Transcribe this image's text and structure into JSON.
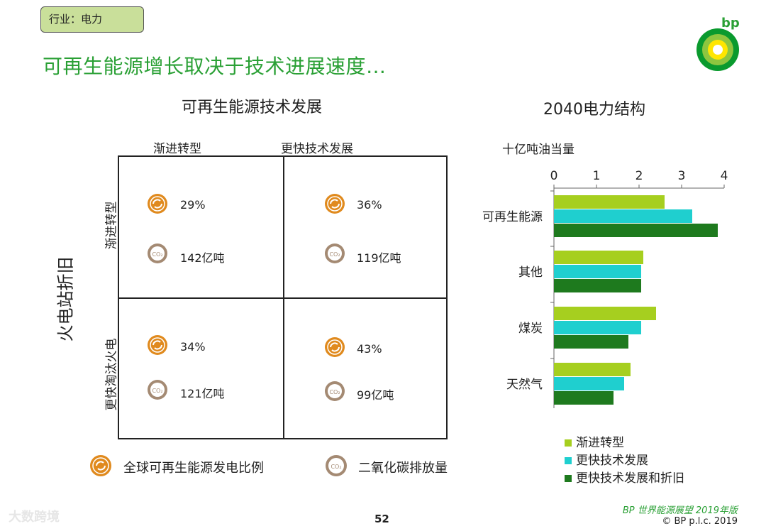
{
  "tag": "行业：电力",
  "title": "可再生能源增长取决于技术进展速度…",
  "logo_text": "bp",
  "matrix": {
    "title": "可再生能源技术发展",
    "col_labels": [
      "渐进转型",
      "更快技术发展"
    ],
    "row_labels": [
      "渐进转型",
      "更快淘汰火电"
    ],
    "y_axis_title": "火电站折旧",
    "cells": [
      {
        "share": "29%",
        "co2": "142亿吨"
      },
      {
        "share": "36%",
        "co2": "119亿吨"
      },
      {
        "share": "34%",
        "co2": "121亿吨"
      },
      {
        "share": "43%",
        "co2": "99亿吨"
      }
    ],
    "legend": {
      "share": "全球可再生能源发电比例",
      "co2": "二氧化碳排放量"
    },
    "co2_glyph": "CO₂"
  },
  "chart_title": "2040电力结构",
  "chart_data": {
    "type": "bar",
    "orientation": "horizontal",
    "title": "2040电力结构",
    "unit_label": "十亿吨油当量",
    "categories": [
      "可再生能源",
      "其他",
      "煤炭",
      "天然气"
    ],
    "xlim": [
      0,
      4
    ],
    "ticks": [
      "0",
      "1",
      "2",
      "3",
      "4"
    ],
    "series": [
      {
        "name": "渐进转型",
        "color": "#a6cf1f",
        "values": [
          2.6,
          2.1,
          2.4,
          1.8
        ]
      },
      {
        "name": "更快技术发展",
        "color": "#1fcfcf",
        "values": [
          3.25,
          2.05,
          2.05,
          1.65
        ]
      },
      {
        "name": "更快技术发展和折旧",
        "color": "#1e7a1e",
        "values": [
          3.85,
          2.05,
          1.75,
          1.4
        ]
      }
    ]
  },
  "page_number": "52",
  "footer": {
    "publication": "BP 世界能源展望 2019年版",
    "copyright": "© BP p.l.c. 2019"
  },
  "watermark": "大数跨境"
}
